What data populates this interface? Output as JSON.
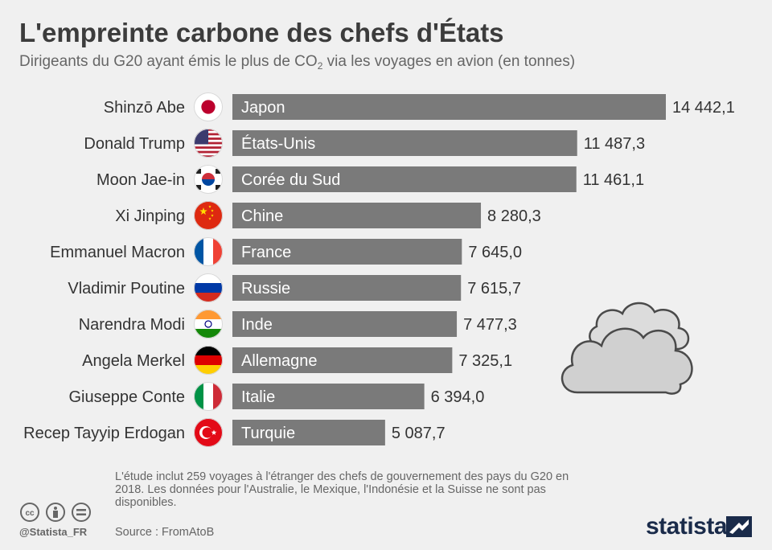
{
  "title": "L'empreinte carbone des chefs d'États",
  "subtitle": {
    "before": "Dirigeants du G20 ayant émis le plus de CO",
    "sub": "2",
    "after": " via les voyages en avion (en tonnes)"
  },
  "chart_data": {
    "type": "bar",
    "orientation": "horizontal",
    "categories": [
      "Shinzō Abe",
      "Donald Trump",
      "Moon Jae-in",
      "Xi Jinping",
      "Emmanuel Macron",
      "Vladimir Poutine",
      "Narendra Modi",
      "Angela Merkel",
      "Giuseppe Conte",
      "Recep Tayyip Erdogan"
    ],
    "countries": [
      "Japon",
      "États-Unis",
      "Corée du Sud",
      "Chine",
      "France",
      "Russie",
      "Inde",
      "Allemagne",
      "Italie",
      "Turquie"
    ],
    "flags": [
      "japan-flag",
      "usa-flag",
      "south-korea-flag",
      "china-flag",
      "france-flag",
      "russia-flag",
      "india-flag",
      "germany-flag",
      "italy-flag",
      "turkey-flag"
    ],
    "values": [
      14442.1,
      11487.3,
      11461.1,
      8280.3,
      7645.0,
      7615.7,
      7477.3,
      7325.1,
      6394.0,
      5087.7
    ],
    "value_labels": [
      "14 442,1",
      "11 487,3",
      "11 461,1",
      "8 280,3",
      "7 645,0",
      "7 615,7",
      "7 477,3",
      "7 325,1",
      "6 394,0",
      "5 087,7"
    ],
    "bar_color": "#7a7a7a"
  },
  "footnote": "L'étude inclut 259 voyages à l'étranger des chefs de gouvernement des pays du G20 en 2018. Les données pour l'Australie, le Mexique, l'Indonésie et la Suisse ne sont pas disponibles.",
  "source": "Source : FromAtoB",
  "credit": "@Statista_FR",
  "brand": "statista",
  "license_icons": [
    "cc-icon",
    "attribution-icon",
    "no-derivatives-icon"
  ],
  "decoration": "cloud-icon"
}
